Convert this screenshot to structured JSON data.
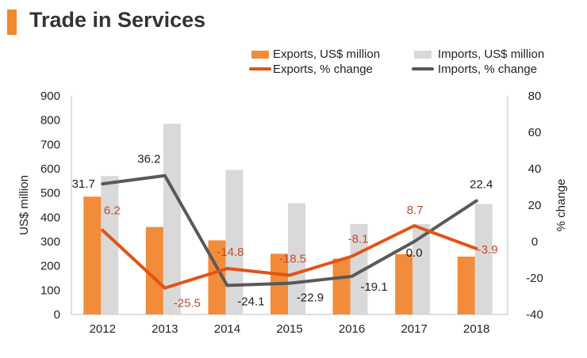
{
  "colors": {
    "exports_bar": "#f28c3a",
    "imports_bar": "#d9d9d9",
    "exports_line": "#e05416",
    "imports_line": "#595959",
    "exports_label": "#c8472a",
    "imports_label": "#222222",
    "title_accent": "#f08a2c"
  },
  "chart_data": {
    "type": "bar",
    "title": "Trade in Services",
    "categories": [
      "2012",
      "2013",
      "2014",
      "2015",
      "2016",
      "2017",
      "2018"
    ],
    "series": [
      {
        "name": "Exports, US$ million",
        "kind": "bar",
        "axis": "left",
        "values": [
          485,
          360,
          305,
          250,
          230,
          248,
          238
        ]
      },
      {
        "name": "Imports, US$ million",
        "kind": "bar",
        "axis": "left",
        "values": [
          570,
          785,
          595,
          458,
          372,
          372,
          455
        ]
      },
      {
        "name": "Exports, % change",
        "kind": "line",
        "axis": "right",
        "values": [
          6.2,
          -25.5,
          -14.8,
          -18.5,
          -8.1,
          8.7,
          -3.9
        ],
        "labels": [
          "6.2",
          "-25.5",
          "-14.8",
          "-18.5",
          "-8.1",
          "8.7",
          "-3.9"
        ]
      },
      {
        "name": "Imports, % change",
        "kind": "line",
        "axis": "right",
        "values": [
          31.7,
          36.2,
          -24.1,
          -22.9,
          -19.1,
          0.0,
          22.4
        ],
        "labels": [
          "31.7",
          "36.2",
          "-24.1",
          "-22.9",
          "-19.1",
          "0.0",
          "22.4"
        ]
      }
    ],
    "ylabel": "US$ million",
    "ylim": [
      0,
      900
    ],
    "yticks": [
      "0",
      "100",
      "200",
      "300",
      "400",
      "500",
      "600",
      "700",
      "800",
      "900"
    ],
    "y2label": "% change",
    "y2lim": [
      -40,
      80
    ],
    "y2ticks": [
      "-40",
      "-20",
      "0",
      "20",
      "40",
      "60",
      "80"
    ],
    "legend_position": "top-right",
    "grid": false
  }
}
